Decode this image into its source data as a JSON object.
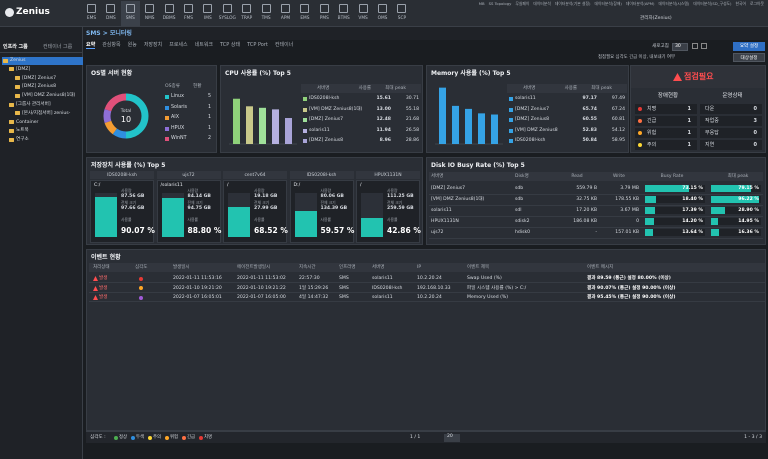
{
  "header": {
    "logo": "Zenius",
    "nav": [
      "EMS",
      "DMS",
      "SMS",
      "NMS",
      "DBMS",
      "FMS",
      "IMS",
      "SYSLOG",
      "TRAP",
      "TMS",
      "APM",
      "EMS",
      "PMS",
      "BTMS",
      "VMS",
      "OMS",
      "SCP"
    ],
    "links": [
      "MB",
      "SS Topology",
      "무실페이",
      "데이터분석",
      "데이터분석(기본 설정)",
      "데이터분석(장애)",
      "데이터분석(APM)",
      "데이터분석(시스템)",
      "데이터분석(SD_구성도)",
      "한국어",
      "로그아웃"
    ],
    "user": "관리자(Zenius)"
  },
  "breadcrumb": "SMS > 모니터링",
  "sidebar": {
    "tabs": [
      "인프라 그룹",
      "컨테이너 그룹"
    ],
    "tree": [
      {
        "label": "Zenius",
        "children": [
          {
            "label": "[DMZ]",
            "children": [
              {
                "label": "[DMZ] Zenius7"
              },
              {
                "label": "[DMZ] Zenius8"
              },
              {
                "label": "[VM] DMZ Zenius8(1대)"
              }
            ]
          },
          {
            "label": "[그룹사 관리서버]",
            "children": [
              {
                "label": "[본사/지점서버] zenius-"
              }
            ]
          },
          {
            "label": "Container"
          },
          {
            "label": "노트북"
          },
          {
            "label": "연구소"
          }
        ]
      }
    ]
  },
  "tabs": [
    "요약",
    "관심항목",
    "원능",
    "저장장치",
    "프로세스",
    "네트워크",
    "TCP 상태",
    "TCP Port",
    "컨테이너"
  ],
  "toolbar": {
    "refresh_label": "새로고침",
    "refresh_value": "30",
    "note": "접점필요 심각도 긴급 이상, 내보내기 여부",
    "buttons": [
      "요약 설정",
      "대상설정"
    ]
  },
  "os": {
    "title": "OS별 서버 현황",
    "total_label": "Total",
    "total": 10,
    "columns": [
      "OS종류",
      "현황"
    ],
    "rows": [
      {
        "name": "Linux",
        "count": 5,
        "color": "#22c3c9"
      },
      {
        "name": "Solaris",
        "count": 1,
        "color": "#2f8fe0"
      },
      {
        "name": "AIX",
        "count": 1,
        "color": "#f39c33"
      },
      {
        "name": "HPUX",
        "count": 1,
        "color": "#8e6fd8"
      },
      {
        "name": "WinNT",
        "count": 2,
        "color": "#e0507a"
      }
    ]
  },
  "cpu": {
    "title": "CPU 사용률 (%) Top 5",
    "ylim": [
      0,
      20
    ],
    "columns": [
      "서버명",
      "사용률",
      "최대 peak"
    ],
    "rows": [
      {
        "name": "IDS0208l-ksh",
        "value": 15.61,
        "peak": 30.71,
        "color": "#8fd17a"
      },
      {
        "name": "[VM] DMZ Zenius8(1대)",
        "value": 13.0,
        "value_label": "13.00",
        "peak": 55.18,
        "color": "#c9c98a"
      },
      {
        "name": "[DMZ] Zenius7",
        "value": 12.48,
        "peak": 21.68,
        "color": "#9fe09a"
      },
      {
        "name": "solaris11",
        "value": 11.94,
        "peak": 26.58,
        "color": "#b5b0e0"
      },
      {
        "name": "[DMZ] Zenius8",
        "value": 8.96,
        "peak": 28.86,
        "color": "#a9a4d8"
      }
    ]
  },
  "memory": {
    "title": "Memory 사용률 (%) Top 5",
    "ylim": [
      0,
      100
    ],
    "columns": [
      "서버명",
      "사용률",
      "최대 peak"
    ],
    "rows": [
      {
        "name": "solaris11",
        "value": 97.17,
        "peak": 97.49,
        "color": "#35a3e6"
      },
      {
        "name": "[DMZ] Zenius7",
        "value": 65.74,
        "peak": 67.24,
        "color": "#35a3e6"
      },
      {
        "name": "[DMZ] Zenius8",
        "value": 60.55,
        "peak": 60.81,
        "color": "#35a3e6"
      },
      {
        "name": "[VM] DMZ Zenius8",
        "value": 52.83,
        "peak": 54.12,
        "color": "#35a3e6"
      },
      {
        "name": "IDS0208l-ksh",
        "value": 50.84,
        "peak": 58.95,
        "color": "#35a3e6"
      }
    ]
  },
  "status": {
    "title": "점검필요",
    "left_title": "장애현황",
    "right_title": "운영상태",
    "left": [
      {
        "name": "치명",
        "count": 1,
        "color": "#e53935"
      },
      {
        "name": "긴급",
        "count": 1,
        "color": "#ff7043"
      },
      {
        "name": "위험",
        "count": 1,
        "color": "#ffa726"
      },
      {
        "name": "주의",
        "count": 1,
        "color": "#fdd835"
      }
    ],
    "right": [
      {
        "name": "다운",
        "count": 0
      },
      {
        "name": "작업중",
        "count": 3
      },
      {
        "name": "무응답",
        "count": 0
      },
      {
        "name": "지연",
        "count": 0
      }
    ]
  },
  "storage": {
    "title": "저장장치 사용률 (%) Top 5",
    "ylim": [
      0,
      100
    ],
    "used_label": "사용량",
    "total_label": "전체 크기",
    "rate_label": "사용률",
    "items": [
      {
        "server": "IDS0208l-ksh",
        "mount": "C:/",
        "used": "87.56 GB",
        "total": "97.66 GB",
        "rate": 90.07,
        "rate_text": "90.07 %"
      },
      {
        "server": "ujs72",
        "mount": "/solaris11",
        "used": "84.14 GB",
        "total": "94.75 GB",
        "rate": 88.8,
        "rate_text": "88.80 %"
      },
      {
        "server": "cent7v64",
        "mount": "/",
        "used": "19.18 GB",
        "total": "27.99 GB",
        "rate": 68.52,
        "rate_text": "68.52 %"
      },
      {
        "server": "IDS0208l-ksh",
        "mount": "D:/",
        "used": "80.06 GB",
        "total": "134.39 GB",
        "rate": 59.57,
        "rate_text": "59.57 %"
      },
      {
        "server": "HPUX1131N",
        "mount": "/",
        "used": "111.25 GB",
        "total": "259.59 GB",
        "rate": 42.86,
        "rate_text": "42.86 %"
      }
    ]
  },
  "disk": {
    "title": "Disk IO Busy Rate (%) Top 5",
    "xlim": [
      0,
      100
    ],
    "columns": [
      "서버명",
      "Disk명",
      "Read",
      "Write",
      "Busy Rate",
      "최대 peak"
    ],
    "rows": [
      {
        "server": "[DMZ] Zenius7",
        "disk": "sdb",
        "read": "559.79 B",
        "write": "3.79 MB",
        "busy": 73.15,
        "busy_text": "73.15 %",
        "peak": 79.15,
        "peak_text": "79.15 %"
      },
      {
        "server": "[VM] DMZ Zenius8(1대)",
        "disk": "sdb",
        "read": "32.75 KB",
        "write": "178.55 KB",
        "busy": 18.4,
        "busy_text": "18.40 %",
        "peak": 96.22,
        "peak_text": "96.22 %"
      },
      {
        "server": "solaris11",
        "disk": "sdl",
        "read": "17.20 KB",
        "write": "3.67 MB",
        "busy": 17.39,
        "busy_text": "17.39 %",
        "peak": 28.9,
        "peak_text": "28.90 %"
      },
      {
        "server": "HPUX1131N",
        "disk": "sdisk2",
        "read": "186.08 KB",
        "write": "0",
        "busy": 14.2,
        "busy_text": "14.20 %",
        "peak": 14.95,
        "peak_text": "14.95 %"
      },
      {
        "server": "ujs72",
        "disk": "hdisk0",
        "read": "-",
        "write": "157.01 KB",
        "busy": 13.64,
        "busy_text": "13.64 %",
        "peak": 16.36,
        "peak_text": "16.36 %"
      }
    ]
  },
  "events": {
    "title": "이벤트 현황",
    "columns": [
      "처리상태",
      "심각도",
      "발생일시",
      "에이전트발생일시",
      "지속시간",
      "인프라명",
      "서버명",
      "IP",
      "이벤트 제목",
      "이벤트 메시지"
    ],
    "rows": [
      {
        "state": "발생",
        "color": "#e53935",
        "cells": [
          "2022-01-11 11:53:16",
          "2022-01-11 11:53:02",
          "22:57:30",
          "SMS",
          "solaris11",
          "10.2.20.24",
          "Swap Used (%)",
          "결과 89.59 (통근) 설정 80.00% (이상)"
        ]
      },
      {
        "state": "발생",
        "color": "#ffa726",
        "cells": [
          "2022-01-10 19:21:20",
          "2022-01-10 19:21:22",
          "1일 15:29:26",
          "SMS",
          "IDS0208l-ksh",
          "192.168.10.33",
          "파일 시스템 사용률 (%) > C:/",
          "결과 90.07% (통근) 설정 90.00% (이상)"
        ]
      },
      {
        "state": "발생",
        "color": "#a05ad8",
        "cells": [
          "2022-01-07 16:05:01",
          "2022-01-07 16:05:00",
          "4일 14:47:32",
          "SMS",
          "solaris11",
          "10.2.20.24",
          "Memory Used (%)",
          "결과 95.45% (통근) 설정 90.00% (이상)"
        ]
      }
    ],
    "legend_label": "심각도 :",
    "legend": [
      {
        "name": "정상",
        "color": "#4caf50"
      },
      {
        "name": "두색",
        "color": "#2f8fe0"
      },
      {
        "name": "주의",
        "color": "#fdd835"
      },
      {
        "name": "위험",
        "color": "#ffa726"
      },
      {
        "name": "긴급",
        "color": "#ff7043"
      },
      {
        "name": "치명",
        "color": "#e53935"
      }
    ],
    "pager": "1 / 1",
    "page_size": "20",
    "range": "1 - 3 / 3"
  }
}
